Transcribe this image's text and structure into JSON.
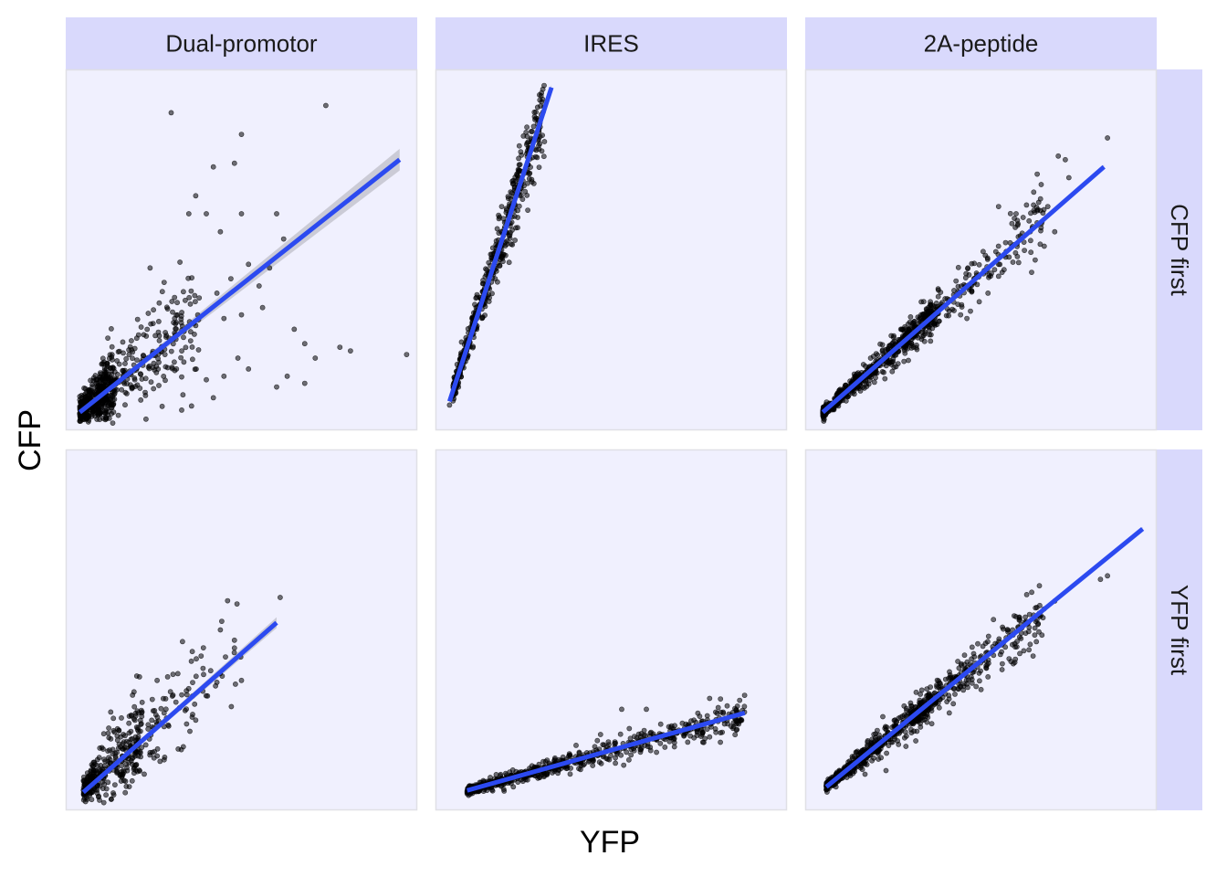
{
  "chart_data": {
    "type": "scatter",
    "xlabel": "YFP",
    "ylabel": "CFP",
    "column_strips": [
      "Dual-promotor",
      "IRES",
      "2A-peptide"
    ],
    "row_strips": [
      "CFP first",
      "YFP first"
    ],
    "axes_ticks_shown": false,
    "grid": false,
    "xlim": [
      0,
      1
    ],
    "ylim": [
      0,
      1
    ],
    "colors": {
      "panel_background": "#f0f0fe",
      "strip_background": "#d9d9fc",
      "panel_border": "#e0e0e6",
      "points": "#000000",
      "fit_line": "#2c4af0",
      "confidence_band": "#bfbfc8"
    },
    "panels": [
      {
        "facet": "Dual-promotor",
        "row": "CFP first",
        "fit": {
          "x": [
            0.04,
            0.95
          ],
          "y": [
            0.05,
            0.75
          ],
          "band": [
            0.004,
            0.03
          ]
        },
        "clusters": [
          {
            "n": 380,
            "x0": 0.04,
            "x1": 0.14,
            "slope": 0.77,
            "intercept": 0.02,
            "spread": 0.045
          },
          {
            "n": 260,
            "x0": 0.09,
            "x1": 0.38,
            "slope": 0.77,
            "intercept": 0.02,
            "spread": 0.07
          }
        ],
        "points": [
          [
            0.3,
            0.88
          ],
          [
            0.74,
            0.9
          ],
          [
            0.5,
            0.82
          ],
          [
            0.42,
            0.73
          ],
          [
            0.48,
            0.74
          ],
          [
            0.37,
            0.65
          ],
          [
            0.35,
            0.6
          ],
          [
            0.6,
            0.6
          ],
          [
            0.62,
            0.53
          ],
          [
            0.5,
            0.6
          ],
          [
            0.44,
            0.55
          ],
          [
            0.4,
            0.6
          ],
          [
            0.52,
            0.46
          ],
          [
            0.58,
            0.45
          ],
          [
            0.65,
            0.28
          ],
          [
            0.78,
            0.23
          ],
          [
            0.81,
            0.22
          ],
          [
            0.97,
            0.21
          ],
          [
            0.71,
            0.2
          ],
          [
            0.68,
            0.24
          ],
          [
            0.68,
            0.13
          ],
          [
            0.63,
            0.15
          ],
          [
            0.52,
            0.17
          ],
          [
            0.45,
            0.15
          ],
          [
            0.4,
            0.14
          ],
          [
            0.42,
            0.09
          ],
          [
            0.6,
            0.12
          ],
          [
            0.56,
            0.34
          ],
          [
            0.47,
            0.42
          ],
          [
            0.45,
            0.31
          ],
          [
            0.55,
            0.4
          ],
          [
            0.5,
            0.32
          ],
          [
            0.34,
            0.36
          ],
          [
            0.28,
            0.41
          ],
          [
            0.24,
            0.45
          ],
          [
            0.37,
            0.29
          ],
          [
            0.33,
            0.22
          ],
          [
            0.49,
            0.2
          ],
          [
            0.43,
            0.38
          ],
          [
            0.31,
            0.31
          ]
        ]
      },
      {
        "facet": "IRES",
        "row": "CFP first",
        "fit": {
          "x": [
            0.04,
            0.33
          ],
          "y": [
            0.08,
            0.95
          ],
          "band": [
            0.004,
            0.008
          ]
        },
        "clusters": [
          {
            "n": 520,
            "x0": 0.05,
            "x1": 0.31,
            "slope": 3.0,
            "intercept": -0.04,
            "spread": 0.045
          }
        ],
        "points": [
          [
            0.04,
            0.07
          ],
          [
            0.29,
            0.85
          ],
          [
            0.26,
            0.84
          ],
          [
            0.31,
            0.8
          ]
        ]
      },
      {
        "facet": "2A-peptide",
        "row": "CFP first",
        "fit": {
          "x": [
            0.05,
            0.85
          ],
          "y": [
            0.05,
            0.73
          ],
          "band": [
            0.002,
            0.006
          ]
        },
        "clusters": [
          {
            "n": 520,
            "x0": 0.05,
            "x1": 0.38,
            "slope": 0.85,
            "intercept": 0.007,
            "spread": 0.022
          },
          {
            "n": 240,
            "x0": 0.28,
            "x1": 0.68,
            "slope": 0.85,
            "intercept": 0.007,
            "spread": 0.04
          }
        ],
        "points": [
          [
            0.86,
            0.81
          ],
          [
            0.72,
            0.76
          ],
          [
            0.74,
            0.75
          ],
          [
            0.66,
            0.71
          ],
          [
            0.65,
            0.66
          ],
          [
            0.55,
            0.62
          ],
          [
            0.6,
            0.6
          ],
          [
            0.64,
            0.55
          ],
          [
            0.71,
            0.55
          ],
          [
            0.68,
            0.51
          ],
          [
            0.55,
            0.46
          ],
          [
            0.48,
            0.42
          ],
          [
            0.52,
            0.38
          ],
          [
            0.47,
            0.33
          ],
          [
            0.46,
            0.31
          ],
          [
            0.58,
            0.48
          ],
          [
            0.62,
            0.59
          ],
          [
            0.69,
            0.62
          ],
          [
            0.75,
            0.7
          ],
          [
            0.57,
            0.52
          ]
        ]
      },
      {
        "facet": "Dual-promotor",
        "row": "YFP first",
        "fit": {
          "x": [
            0.05,
            0.6
          ],
          "y": [
            0.05,
            0.52
          ],
          "band": [
            0.003,
            0.015
          ]
        },
        "clusters": [
          {
            "n": 300,
            "x0": 0.05,
            "x1": 0.22,
            "slope": 0.86,
            "intercept": 0.01,
            "spread": 0.06
          },
          {
            "n": 110,
            "x0": 0.16,
            "x1": 0.5,
            "slope": 0.86,
            "intercept": 0.01,
            "spread": 0.08
          }
        ],
        "points": [
          [
            0.61,
            0.59
          ],
          [
            0.44,
            0.5
          ],
          [
            0.48,
            0.45
          ],
          [
            0.36,
            0.44
          ],
          [
            0.21,
            0.37
          ],
          [
            0.26,
            0.36
          ],
          [
            0.29,
            0.37
          ],
          [
            0.39,
            0.33
          ],
          [
            0.5,
            0.36
          ],
          [
            0.37,
            0.25
          ],
          [
            0.32,
            0.17
          ],
          [
            0.28,
            0.14
          ],
          [
            0.24,
            0.16
          ],
          [
            0.28,
            0.27
          ],
          [
            0.33,
            0.32
          ]
        ]
      },
      {
        "facet": "IRES",
        "row": "YFP first",
        "fit": {
          "x": [
            0.09,
            0.88
          ],
          "y": [
            0.055,
            0.27
          ],
          "band": [
            0.002,
            0.005
          ]
        },
        "clusters": [
          {
            "n": 650,
            "x0": 0.09,
            "x1": 0.88,
            "slope": 0.27,
            "intercept": 0.03,
            "spread": 0.018
          }
        ],
        "points": [
          [
            0.53,
            0.28
          ],
          [
            0.6,
            0.28
          ],
          [
            0.78,
            0.31
          ],
          [
            0.68,
            0.22
          ],
          [
            0.4,
            0.18
          ]
        ]
      },
      {
        "facet": "2A-peptide",
        "row": "YFP first",
        "fit": {
          "x": [
            0.06,
            0.96
          ],
          "y": [
            0.065,
            0.78
          ],
          "band": [
            0.002,
            0.005
          ]
        },
        "clusters": [
          {
            "n": 480,
            "x0": 0.06,
            "x1": 0.36,
            "slope": 0.79,
            "intercept": 0.018,
            "spread": 0.02
          },
          {
            "n": 300,
            "x0": 0.3,
            "x1": 0.68,
            "slope": 0.79,
            "intercept": 0.018,
            "spread": 0.035
          }
        ],
        "points": [
          [
            0.86,
            0.65
          ],
          [
            0.84,
            0.64
          ],
          [
            0.71,
            0.58
          ],
          [
            0.59,
            0.5
          ],
          [
            0.61,
            0.48
          ],
          [
            0.58,
            0.42
          ],
          [
            0.56,
            0.39
          ],
          [
            0.52,
            0.37
          ],
          [
            0.46,
            0.35
          ],
          [
            0.41,
            0.27
          ],
          [
            0.36,
            0.24
          ],
          [
            0.23,
            0.11
          ],
          [
            0.17,
            0.1
          ],
          [
            0.67,
            0.54
          ],
          [
            0.64,
            0.46
          ]
        ]
      }
    ]
  }
}
